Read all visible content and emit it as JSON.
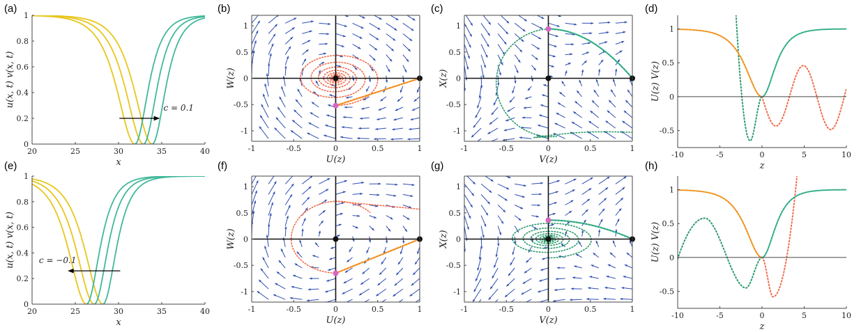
{
  "chart_data": [
    {
      "id": "a",
      "label": "(a)",
      "type": "line",
      "xlabel": "x",
      "ylabel": "u(x, t)    v(x, t)",
      "xlim": [
        20,
        40
      ],
      "ylim": [
        0,
        1
      ],
      "xticks": [
        20,
        25,
        30,
        35,
        40
      ],
      "xtick_labels": [
        "20",
        "25",
        "30",
        "35",
        "40"
      ],
      "yticks": [
        0,
        0.2,
        0.4,
        0.6,
        0.8,
        1
      ],
      "ytick_labels": [
        "0",
        "0.2",
        "0.4",
        "0.6",
        "0.8",
        "1"
      ],
      "series": [
        {
          "name": "u",
          "color": "#e8c61c",
          "centers": [
            31.9,
            32.9,
            33.9
          ],
          "side": "left"
        },
        {
          "name": "v",
          "color": "#40b89a",
          "centers": [
            31.9,
            32.9,
            33.9
          ],
          "side": "right"
        }
      ],
      "annotation": {
        "text": "c = 0.1",
        "arrow_from": [
          30.1,
          0.2
        ],
        "arrow_to": [
          34.7,
          0.2
        ]
      }
    },
    {
      "id": "b",
      "label": "(b)",
      "type": "phase",
      "xlabel": "U(z)",
      "ylabel": "W(z)",
      "xlim": [
        -1,
        1
      ],
      "ylim": [
        -1.2,
        1.2
      ],
      "xticks": [
        -1,
        -0.5,
        0,
        0.5,
        1
      ],
      "xtick_labels": [
        "-1",
        "-0.5",
        "0",
        "0.5",
        "1"
      ],
      "yticks": [
        -1,
        -0.5,
        0,
        0.5,
        1
      ],
      "ytick_labels": [
        "-1",
        "-0.5",
        "0",
        "0.5",
        "1"
      ],
      "c": 0.1,
      "dotted_color": "#f26b4a",
      "solid_color": "#f0a71c",
      "equilibria": [
        [
          0,
          0
        ],
        [
          1,
          0
        ]
      ],
      "marked_point": [
        0,
        -0.52
      ],
      "dotted_orbit": "spiral"
    },
    {
      "id": "c",
      "label": "(c)",
      "type": "phase",
      "xlabel": "V(z)",
      "ylabel": "X(z)",
      "xlim": [
        -1,
        1
      ],
      "ylim": [
        -1.2,
        1.2
      ],
      "xticks": [
        -1,
        -0.5,
        0,
        0.5,
        1
      ],
      "xtick_labels": [
        "-1",
        "-0.5",
        "0",
        "0.5",
        "1"
      ],
      "yticks": [
        -1,
        -0.5,
        0,
        0.5,
        1
      ],
      "ytick_labels": [
        "-1",
        "-0.5",
        "0",
        "0.5",
        "1"
      ],
      "c": 0.1,
      "dotted_color": "#2a9a6a",
      "solid_color": "#40b89a",
      "equilibria": [
        [
          0,
          0
        ],
        [
          1,
          0
        ]
      ],
      "marked_point": [
        0,
        0.94
      ],
      "dotted_orbit": "loop"
    },
    {
      "id": "d",
      "label": "(d)",
      "type": "line",
      "xlabel": "z",
      "ylabel": "U(z)    V(z)",
      "xlim": [
        -10,
        10
      ],
      "ylim": [
        -0.75,
        1.2
      ],
      "xticks": [
        -10,
        -5,
        0,
        5,
        10
      ],
      "xtick_labels": [
        "-10",
        "-5",
        "0",
        "5",
        "10"
      ],
      "yticks": [
        -0.5,
        0,
        0.5,
        1
      ],
      "ytick_labels": [
        "-0.5",
        "0",
        "0.5",
        "1"
      ],
      "series": [
        {
          "name": "U",
          "color": "#f0a71c"
        },
        {
          "name": "V",
          "color": "#40b89a"
        },
        {
          "name": "U continuation",
          "color": "#f26b4a",
          "dotted": true
        },
        {
          "name": "V continuation",
          "color": "#2a9a6a",
          "dotted": true
        }
      ]
    },
    {
      "id": "e",
      "label": "(e)",
      "type": "line",
      "xlabel": "x",
      "ylabel": "u(x, t)    v(x, t)",
      "xlim": [
        20,
        40
      ],
      "ylim": [
        0,
        1
      ],
      "xticks": [
        20,
        25,
        30,
        35,
        40
      ],
      "xtick_labels": [
        "20",
        "25",
        "30",
        "35",
        "40"
      ],
      "yticks": [
        0,
        0.2,
        0.4,
        0.6,
        0.8,
        1
      ],
      "ytick_labels": [
        "0",
        "0.2",
        "0.4",
        "0.6",
        "0.8",
        "1"
      ],
      "series": [
        {
          "name": "u",
          "color": "#e8c61c",
          "centers": [
            26.3,
            27.2,
            28.2
          ],
          "side": "left"
        },
        {
          "name": "v",
          "color": "#40b89a",
          "centers": [
            26.3,
            27.2,
            28.2
          ],
          "side": "right"
        }
      ],
      "annotation": {
        "text": "c = −0.1",
        "arrow_from": [
          30.2,
          0.26
        ],
        "arrow_to": [
          24.2,
          0.26
        ]
      }
    },
    {
      "id": "f",
      "label": "(f)",
      "type": "phase",
      "xlabel": "U(z)",
      "ylabel": "W(z)",
      "xlim": [
        -1,
        1
      ],
      "ylim": [
        -1.2,
        1.2
      ],
      "xticks": [
        -1,
        -0.5,
        0,
        0.5,
        1
      ],
      "xtick_labels": [
        "-1",
        "-0.5",
        "0",
        "0.5",
        "1"
      ],
      "yticks": [
        -1,
        -0.5,
        0,
        0.5,
        1
      ],
      "ytick_labels": [
        "-1",
        "-0.5",
        "0",
        "0.5",
        "1"
      ],
      "c": -0.1,
      "dotted_color": "#f26b4a",
      "solid_color": "#f0a71c",
      "equilibria": [
        [
          0,
          0
        ],
        [
          1,
          0
        ]
      ],
      "marked_point": [
        0,
        -0.65
      ],
      "dotted_orbit": "loop"
    },
    {
      "id": "g",
      "label": "(g)",
      "type": "phase",
      "xlabel": "V(z)",
      "ylabel": "X(z)",
      "xlim": [
        -1,
        1
      ],
      "ylim": [
        -1.2,
        1.2
      ],
      "xticks": [
        -1,
        -0.5,
        0,
        0.5,
        1
      ],
      "xtick_labels": [
        "-1",
        "-0.5",
        "0",
        "0.5",
        "1"
      ],
      "yticks": [
        -1,
        -0.5,
        0,
        0.5,
        1
      ],
      "ytick_labels": [
        "-1",
        "-0.5",
        "0",
        "0.5",
        "1"
      ],
      "c": -0.1,
      "dotted_color": "#2a9a6a",
      "solid_color": "#40b89a",
      "equilibria": [
        [
          0,
          0
        ],
        [
          1,
          0
        ]
      ],
      "marked_point": [
        0,
        0.36
      ],
      "dotted_orbit": "spiral"
    },
    {
      "id": "h",
      "label": "(h)",
      "type": "line",
      "xlabel": "z",
      "ylabel": "U(z)    V(z)",
      "xlim": [
        -10,
        10
      ],
      "ylim": [
        -0.75,
        1.2
      ],
      "xticks": [
        -10,
        -5,
        0,
        5,
        10
      ],
      "xtick_labels": [
        "-10",
        "-5",
        "0",
        "5",
        "10"
      ],
      "yticks": [
        -0.5,
        0,
        0.5,
        1
      ],
      "ytick_labels": [
        "-0.5",
        "0",
        "0.5",
        "1"
      ],
      "series": [
        {
          "name": "U",
          "color": "#f0a71c"
        },
        {
          "name": "V",
          "color": "#40b89a"
        },
        {
          "name": "U continuation",
          "color": "#f26b4a",
          "dotted": true
        },
        {
          "name": "V continuation",
          "color": "#2a9a6a",
          "dotted": true
        }
      ]
    }
  ],
  "colors": {
    "arrows": "#2f4eb0",
    "equilibrium": "#111111",
    "marked_point": "#d866c0",
    "axes_cross": "#111111"
  }
}
